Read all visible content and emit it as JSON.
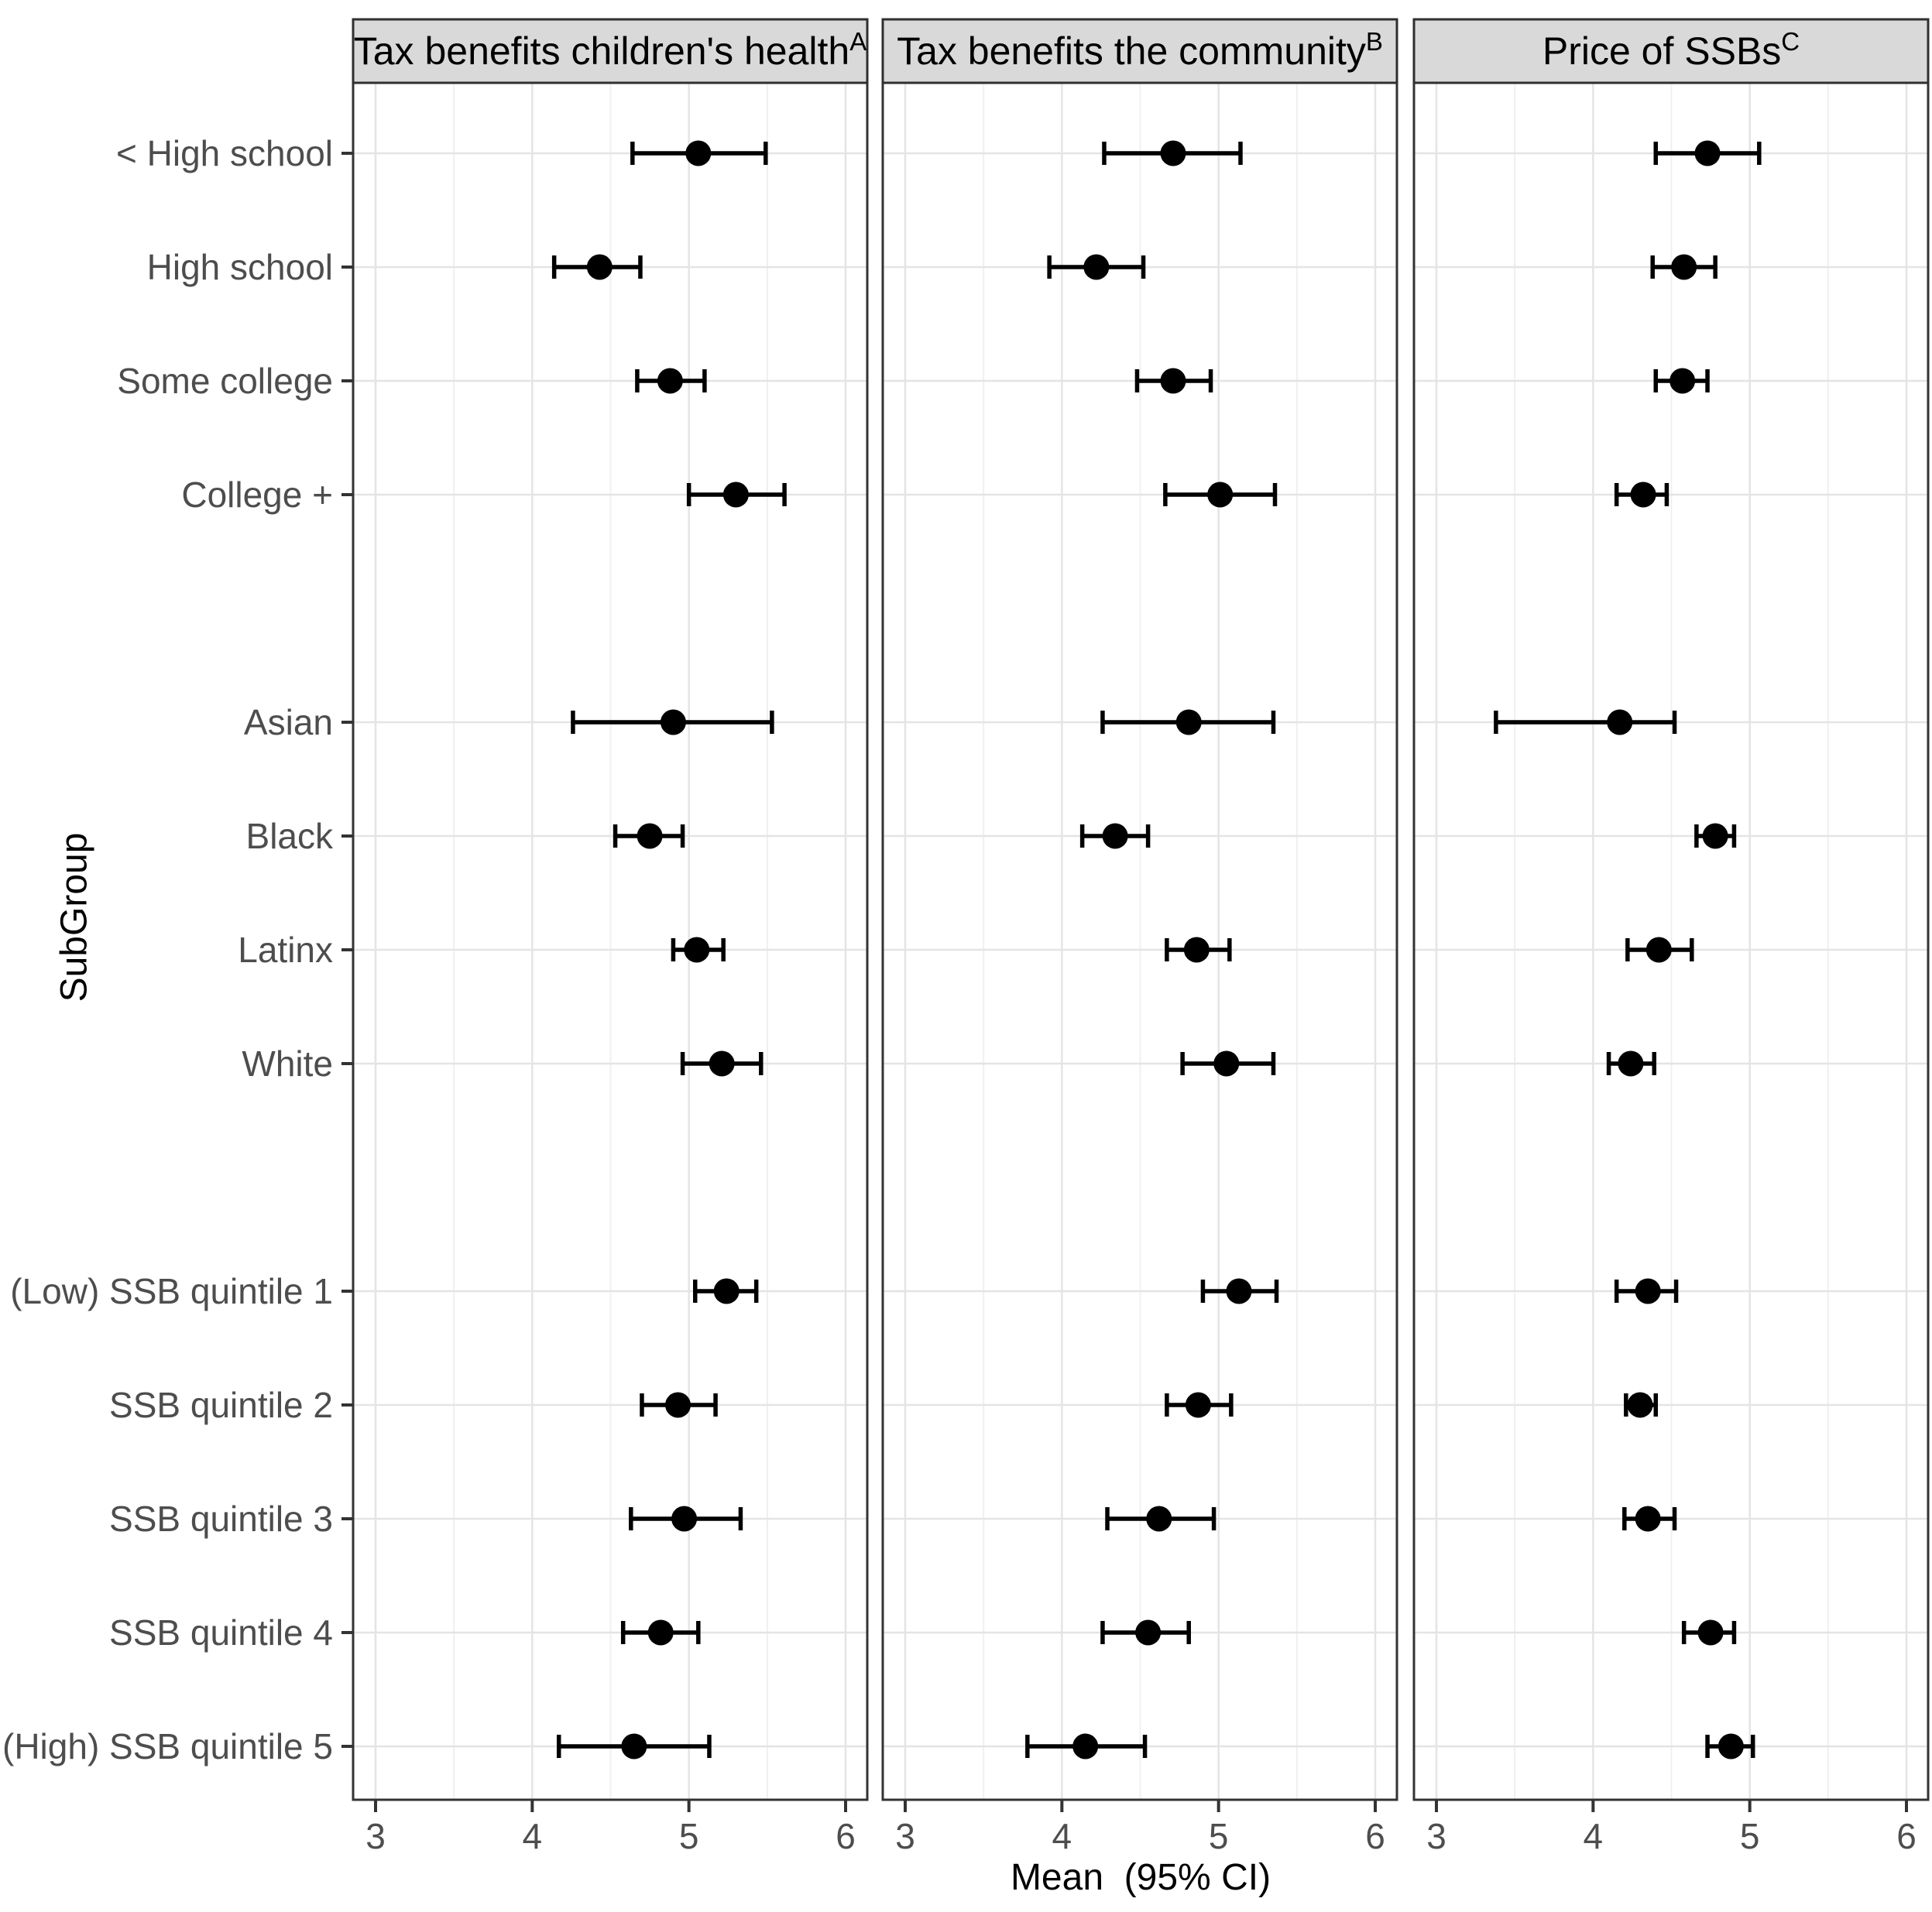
{
  "chart_data": {
    "type": "scatter",
    "subtype": "forest-plot-error-bars",
    "title": "",
    "xlabel": "Mean  (95% CI)",
    "ylabel": "SubGroup",
    "x_ticks": [
      3,
      4,
      5,
      6
    ],
    "x_minor_ticks": [
      3.5,
      4.5,
      5.5
    ],
    "xlim": [
      2.857,
      6.14
    ],
    "grid": "on",
    "legend": "none",
    "point_shape": "filled-circle",
    "categories": [
      "< High school",
      "High school",
      "Some college",
      "College +",
      "Asian",
      "Black",
      "Latinx",
      "White",
      "(Low) SSB quintile 1",
      "SSB quintile 2",
      "SSB quintile 3",
      "SSB quintile 4",
      "(High) SSB quintile 5"
    ],
    "group_sizes": [
      4,
      4,
      5
    ],
    "panels": [
      {
        "title": "Tax benefits children's health",
        "superscript": "A",
        "estimates": [
          {
            "mean": 5.06,
            "lo": 4.64,
            "hi": 5.49
          },
          {
            "mean": 4.43,
            "lo": 4.14,
            "hi": 4.69
          },
          {
            "mean": 4.88,
            "lo": 4.67,
            "hi": 5.1
          },
          {
            "mean": 5.3,
            "lo": 5.0,
            "hi": 5.61
          },
          {
            "mean": 4.9,
            "lo": 4.26,
            "hi": 5.53
          },
          {
            "mean": 4.75,
            "lo": 4.53,
            "hi": 4.96
          },
          {
            "mean": 5.05,
            "lo": 4.9,
            "hi": 5.22
          },
          {
            "mean": 5.21,
            "lo": 4.96,
            "hi": 5.46
          },
          {
            "mean": 5.24,
            "lo": 5.04,
            "hi": 5.43
          },
          {
            "mean": 4.93,
            "lo": 4.7,
            "hi": 5.17
          },
          {
            "mean": 4.97,
            "lo": 4.63,
            "hi": 5.33
          },
          {
            "mean": 4.82,
            "lo": 4.58,
            "hi": 5.06
          },
          {
            "mean": 4.65,
            "lo": 4.17,
            "hi": 5.13
          }
        ]
      },
      {
        "title": "Tax benefits the community",
        "superscript": "B",
        "estimates": [
          {
            "mean": 4.71,
            "lo": 4.27,
            "hi": 5.14
          },
          {
            "mean": 4.22,
            "lo": 3.92,
            "hi": 4.52
          },
          {
            "mean": 4.71,
            "lo": 4.48,
            "hi": 4.95
          },
          {
            "mean": 5.01,
            "lo": 4.66,
            "hi": 5.36
          },
          {
            "mean": 4.81,
            "lo": 4.26,
            "hi": 5.35
          },
          {
            "mean": 4.34,
            "lo": 4.13,
            "hi": 4.55
          },
          {
            "mean": 4.86,
            "lo": 4.67,
            "hi": 5.07
          },
          {
            "mean": 5.05,
            "lo": 4.77,
            "hi": 5.35
          },
          {
            "mean": 5.13,
            "lo": 4.9,
            "hi": 5.37
          },
          {
            "mean": 4.87,
            "lo": 4.67,
            "hi": 5.08
          },
          {
            "mean": 4.62,
            "lo": 4.29,
            "hi": 4.97
          },
          {
            "mean": 4.55,
            "lo": 4.26,
            "hi": 4.81
          },
          {
            "mean": 4.15,
            "lo": 3.78,
            "hi": 4.53
          }
        ]
      },
      {
        "title": "Price of SSBs",
        "superscript": "C",
        "estimates": [
          {
            "mean": 4.73,
            "lo": 4.4,
            "hi": 5.06
          },
          {
            "mean": 4.58,
            "lo": 4.38,
            "hi": 4.78
          },
          {
            "mean": 4.57,
            "lo": 4.4,
            "hi": 4.73
          },
          {
            "mean": 4.32,
            "lo": 4.15,
            "hi": 4.47
          },
          {
            "mean": 4.17,
            "lo": 3.38,
            "hi": 4.52
          },
          {
            "mean": 4.78,
            "lo": 4.66,
            "hi": 4.9
          },
          {
            "mean": 4.42,
            "lo": 4.22,
            "hi": 4.63
          },
          {
            "mean": 4.24,
            "lo": 4.1,
            "hi": 4.39
          },
          {
            "mean": 4.35,
            "lo": 4.15,
            "hi": 4.53
          },
          {
            "mean": 4.3,
            "lo": 4.21,
            "hi": 4.4
          },
          {
            "mean": 4.35,
            "lo": 4.2,
            "hi": 4.52
          },
          {
            "mean": 4.75,
            "lo": 4.58,
            "hi": 4.9
          },
          {
            "mean": 4.88,
            "lo": 4.73,
            "hi": 5.02
          }
        ]
      }
    ],
    "colors": {
      "background": "#ffffff",
      "strip_fill": "#d9d9d9",
      "strip_border": "#2f2f2f",
      "panel_border": "#333333",
      "grid_major": "#e4e4e4",
      "grid_minor": "#f0f0f0",
      "point": "#000000",
      "error_bar": "#000000",
      "axis_text": "#4d4d4d",
      "tick_mark": "#333333",
      "title_text": "#000000"
    }
  }
}
